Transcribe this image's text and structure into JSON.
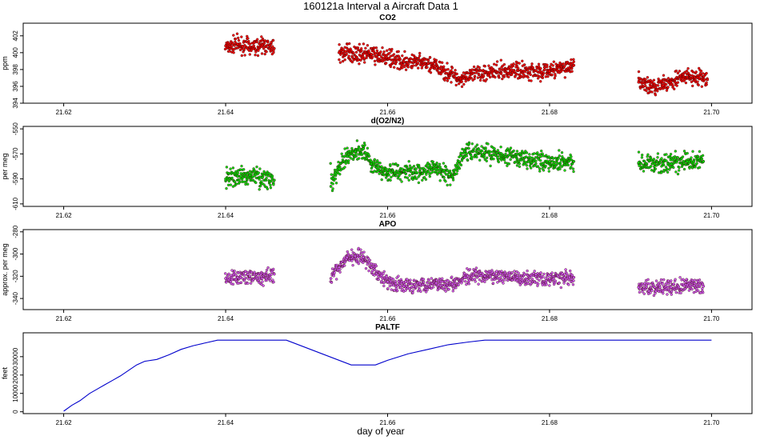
{
  "figure": {
    "title": "160121a   Interval a Aircraft Data 1",
    "xlabel": "day of year"
  },
  "colors": {
    "co2": "#ee0000",
    "o2n2": "#00dd00",
    "apo": "#cc55ee",
    "paltf": "#0000cc",
    "dark_edge": "#330000"
  },
  "chart_data": [
    {
      "type": "scatter",
      "title": "CO2",
      "ylabel": "ppm",
      "xlim": [
        21.615,
        21.705
      ],
      "ylim": [
        394,
        403.5
      ],
      "x_ticks": [
        "21.62",
        "21.64",
        "21.66",
        "21.68",
        "21.70"
      ],
      "y_ticks": [
        "394",
        "396",
        "398",
        "400",
        "402"
      ],
      "series": [
        {
          "segments": [
            {
              "x": [
                21.64,
                21.6415,
                21.643,
                21.6445,
                21.646
              ],
              "y": [
                400.8,
                401.0,
                400.7,
                400.9,
                400.5
              ]
            },
            {
              "x": [
                21.654,
                21.658,
                21.662,
                21.665,
                21.669,
                21.672,
                21.676,
                21.68,
                21.683
              ],
              "y": [
                400.0,
                399.8,
                398.9,
                398.7,
                396.9,
                397.7,
                397.9,
                397.8,
                398.5
              ]
            },
            {
              "x": [
                21.691,
                21.6925,
                21.694,
                21.6955,
                21.697,
                21.6985,
                21.6995
              ],
              "y": [
                396.5,
                396.0,
                396.1,
                396.8,
                397.1,
                397.0,
                396.8
              ]
            }
          ]
        }
      ]
    },
    {
      "type": "scatter",
      "title": "d(O2/N2)",
      "ylabel": "per meg",
      "xlim": [
        21.615,
        21.705
      ],
      "ylim": [
        -612,
        -548
      ],
      "x_ticks": [
        "21.62",
        "21.64",
        "21.66",
        "21.68",
        "21.70"
      ],
      "y_ticks": [
        "-610",
        "-590",
        "-570",
        "-550"
      ],
      "series": [
        {
          "segments": [
            {
              "x": [
                21.64,
                21.6415,
                21.643,
                21.6445,
                21.646
              ],
              "y": [
                -590,
                -588,
                -587,
                -589,
                -591
              ]
            },
            {
              "x": [
                21.653,
                21.654,
                21.655,
                21.656,
                21.657,
                21.658,
                21.66,
                21.662,
                21.664,
                21.666,
                21.668,
                21.6695,
                21.672,
                21.676,
                21.68,
                21.683
              ],
              "y": [
                -596,
                -582,
                -572,
                -568,
                -566,
                -578,
                -585,
                -584,
                -584,
                -582,
                -588,
                -568,
                -569,
                -574,
                -576,
                -576
              ]
            },
            {
              "x": [
                21.691,
                21.693,
                21.695,
                21.697,
                21.699
              ],
              "y": [
                -577,
                -578,
                -578,
                -576,
                -576
              ]
            }
          ]
        }
      ]
    },
    {
      "type": "scatter",
      "title": "APO",
      "ylabel": "approx. per meg",
      "xlim": [
        21.615,
        21.705
      ],
      "ylim": [
        -350,
        -278
      ],
      "x_ticks": [
        "21.62",
        "21.64",
        "21.66",
        "21.68",
        "21.70"
      ],
      "y_ticks": [
        "-340",
        "-320",
        "-300",
        "-280"
      ],
      "series": [
        {
          "segments": [
            {
              "x": [
                21.64,
                21.6415,
                21.643,
                21.6445,
                21.646
              ],
              "y": [
                -322,
                -321,
                -320,
                -322,
                -318
              ]
            },
            {
              "x": [
                21.653,
                21.654,
                21.655,
                21.656,
                21.657,
                21.658,
                21.66,
                21.662,
                21.664,
                21.666,
                21.668,
                21.6695,
                21.672,
                21.676,
                21.68,
                21.683
              ],
              "y": [
                -322,
                -312,
                -303,
                -302,
                -303,
                -312,
                -325,
                -329,
                -327,
                -326,
                -327,
                -321,
                -320,
                -321,
                -322,
                -321
              ]
            },
            {
              "x": [
                21.691,
                21.693,
                21.695,
                21.697,
                21.699
              ],
              "y": [
                -330,
                -330,
                -330,
                -328,
                -329
              ]
            }
          ]
        }
      ]
    },
    {
      "type": "line",
      "title": "PALTF",
      "ylabel": "feet",
      "xlim": [
        21.615,
        21.705
      ],
      "ylim": [
        -1000,
        43000
      ],
      "x_ticks": [
        "21.62",
        "21.64",
        "21.66",
        "21.68",
        "21.70"
      ],
      "y_ticks": [
        "0",
        "10000",
        "20000",
        "30000"
      ],
      "series": [
        {
          "x": [
            21.62,
            21.621,
            21.622,
            21.6232,
            21.624,
            21.625,
            21.626,
            21.627,
            21.628,
            21.629,
            21.63,
            21.6315,
            21.633,
            21.6345,
            21.636,
            21.6375,
            21.639,
            21.6475,
            21.6555,
            21.6585,
            21.66,
            21.6625,
            21.665,
            21.6675,
            21.67,
            21.672,
            21.68,
            21.7
          ],
          "y": [
            300,
            3500,
            6000,
            10000,
            12000,
            14500,
            17000,
            19500,
            22500,
            25500,
            27500,
            28500,
            31000,
            34000,
            36000,
            37500,
            39000,
            39000,
            25500,
            25500,
            28000,
            31500,
            34000,
            36500,
            38000,
            39000,
            39000,
            39000
          ]
        }
      ]
    }
  ]
}
